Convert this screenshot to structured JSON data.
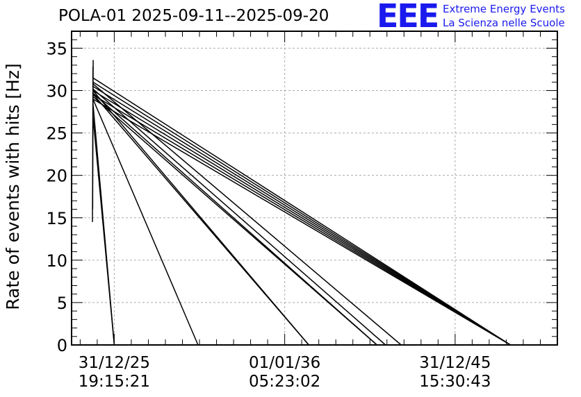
{
  "header": {
    "title": "POLA-01 2025-09-11--2025-09-20",
    "logo": "EEE",
    "logo_line1": "Extreme Energy Events",
    "logo_line2": "La Scienza nelle Scuole",
    "logo_color": "#1a1aee"
  },
  "chart_data": {
    "type": "line",
    "title": "POLA-01 2025-09-11--2025-09-20",
    "xlabel": "",
    "ylabel": "Rate of events with hits [Hz]",
    "ylim": [
      0,
      37
    ],
    "yticks": [
      0,
      5,
      10,
      15,
      20,
      25,
      30,
      35
    ],
    "xticks": [
      {
        "date": "31/12/25",
        "time": "19:15:21"
      },
      {
        "date": "01/01/36",
        "time": "05:23:02"
      },
      {
        "date": "31/12/45",
        "time": "15:30:43"
      }
    ],
    "grid": true,
    "line_color": "#000000",
    "series": [
      {
        "segments": [
          {
            "x": [
              "2024-10-01",
              "2049-04-01"
            ],
            "y": [
              29.0,
              0.0
            ]
          },
          {
            "x": [
              "2024-10-01",
              "2049-04-01"
            ],
            "y": [
              29.5,
              0.0
            ]
          },
          {
            "x": [
              "2024-10-01",
              "2049-04-01"
            ],
            "y": [
              30.0,
              0.0
            ]
          },
          {
            "x": [
              "2024-10-01",
              "2049-04-01"
            ],
            "y": [
              30.5,
              0.0
            ]
          },
          {
            "x": [
              "2024-10-01",
              "2049-04-01"
            ],
            "y": [
              31.0,
              0.0
            ]
          },
          {
            "x": [
              "2024-10-01",
              "2049-04-01"
            ],
            "y": [
              31.5,
              0.0
            ]
          },
          {
            "x": [
              "2024-10-01",
              "2042-11-01"
            ],
            "y": [
              30.8,
              0.0
            ]
          },
          {
            "x": [
              "2024-10-01",
              "2041-12-01"
            ],
            "y": [
              30.2,
              0.0
            ]
          },
          {
            "x": [
              "2024-10-01",
              "2041-06-01"
            ],
            "y": [
              29.3,
              0.0
            ]
          },
          {
            "x": [
              "2024-10-01",
              "2041-06-01"
            ],
            "y": [
              29.7,
              0.0
            ]
          },
          {
            "x": [
              "2024-10-01",
              "2037-06-01"
            ],
            "y": [
              30.0,
              0.0
            ]
          },
          {
            "x": [
              "2024-10-01",
              "2037-06-01"
            ],
            "y": [
              29.6,
              0.0
            ]
          },
          {
            "x": [
              "2024-10-01",
              "2030-12-01"
            ],
            "y": [
              29.0,
              0.0
            ]
          },
          {
            "x": [
              "2024-10-01",
              "2026-01-01"
            ],
            "y": [
              28.5,
              0.0
            ]
          },
          {
            "x": [
              "2024-10-01",
              "2026-01-01"
            ],
            "y": [
              27.0,
              0.0
            ]
          },
          {
            "x": [
              "2024-09-20",
              "2024-10-06"
            ],
            "y": [
              14.5,
              33.6
            ]
          },
          {
            "x": [
              "2024-09-25",
              "2024-10-01"
            ],
            "y": [
              16.0,
              32.8
            ]
          }
        ]
      }
    ]
  }
}
